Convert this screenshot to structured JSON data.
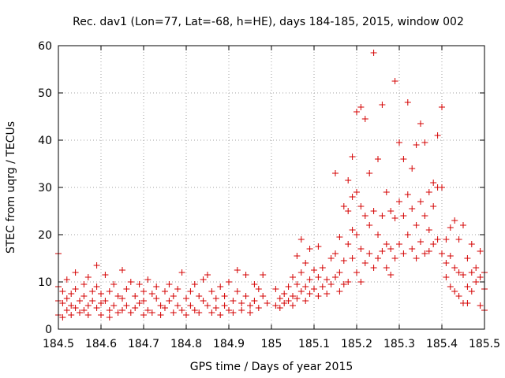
{
  "chart_data": {
    "type": "scatter",
    "title": "Rec. dav1 (Lon=77, Lat=-68, h=HE), days 184-185, 2015, window 002",
    "xlabel": "GPS time / Days of year 2015",
    "ylabel": "STEC from uqrg / TECUs",
    "xlim": [
      184.5,
      185.5
    ],
    "ylim": [
      0,
      60
    ],
    "xticks": [
      184.5,
      184.6,
      184.7,
      184.8,
      184.9,
      185,
      185.1,
      185.2,
      185.3,
      185.4,
      185.5
    ],
    "xtick_labels": [
      "184.5",
      "184.6",
      "184.7",
      "184.8",
      "184.9",
      "185",
      "185.1",
      "185.2",
      "185.3",
      "185.4",
      "185.5"
    ],
    "yticks": [
      0,
      10,
      20,
      30,
      40,
      50,
      60
    ],
    "ytick_labels": [
      "0",
      "10",
      "20",
      "30",
      "40",
      "50",
      "60"
    ],
    "grid": true,
    "marker": "plus",
    "color": "#d40000",
    "points": [
      [
        184.5,
        16.0
      ],
      [
        184.5,
        9.0
      ],
      [
        184.5,
        6.0
      ],
      [
        184.5,
        3.0
      ],
      [
        184.51,
        5.5
      ],
      [
        184.51,
        2.5
      ],
      [
        184.51,
        8.0
      ],
      [
        184.52,
        10.5
      ],
      [
        184.52,
        6.5
      ],
      [
        184.52,
        4.0
      ],
      [
        184.53,
        7.5
      ],
      [
        184.53,
        3.0
      ],
      [
        184.53,
        5.0
      ],
      [
        184.54,
        12.0
      ],
      [
        184.54,
        8.5
      ],
      [
        184.54,
        4.5
      ],
      [
        184.55,
        6.0
      ],
      [
        184.55,
        3.5
      ],
      [
        184.56,
        7.0
      ],
      [
        184.56,
        4.0
      ],
      [
        184.56,
        9.5
      ],
      [
        184.57,
        11.0
      ],
      [
        184.57,
        5.0
      ],
      [
        184.57,
        3.0
      ],
      [
        184.58,
        8.0
      ],
      [
        184.58,
        6.0
      ],
      [
        184.59,
        13.5
      ],
      [
        184.59,
        9.0
      ],
      [
        184.59,
        4.5
      ],
      [
        184.6,
        7.5
      ],
      [
        184.6,
        3.0
      ],
      [
        184.6,
        5.5
      ],
      [
        184.61,
        11.5
      ],
      [
        184.61,
        6.0
      ],
      [
        184.62,
        8.0
      ],
      [
        184.62,
        4.0
      ],
      [
        184.62,
        2.5
      ],
      [
        184.63,
        9.5
      ],
      [
        184.63,
        5.0
      ],
      [
        184.64,
        7.0
      ],
      [
        184.64,
        3.5
      ],
      [
        184.65,
        12.5
      ],
      [
        184.65,
        6.5
      ],
      [
        184.65,
        4.0
      ],
      [
        184.66,
        8.5
      ],
      [
        184.66,
        5.0
      ],
      [
        184.67,
        10.0
      ],
      [
        184.67,
        3.5
      ],
      [
        184.68,
        7.0
      ],
      [
        184.68,
        4.5
      ],
      [
        184.69,
        9.5
      ],
      [
        184.69,
        5.5
      ],
      [
        184.7,
        6.0
      ],
      [
        184.7,
        3.0
      ],
      [
        184.7,
        8.0
      ],
      [
        184.71,
        10.5
      ],
      [
        184.71,
        4.0
      ],
      [
        184.72,
        7.5
      ],
      [
        184.72,
        3.5
      ],
      [
        184.73,
        6.5
      ],
      [
        184.73,
        9.0
      ],
      [
        184.74,
        5.0
      ],
      [
        184.74,
        3.0
      ],
      [
        184.75,
        8.0
      ],
      [
        184.75,
        4.5
      ],
      [
        184.76,
        9.5
      ],
      [
        184.76,
        6.0
      ],
      [
        184.77,
        3.5
      ],
      [
        184.77,
        7.0
      ],
      [
        184.78,
        5.0
      ],
      [
        184.78,
        8.5
      ],
      [
        184.79,
        12.0
      ],
      [
        184.79,
        4.0
      ],
      [
        184.8,
        6.5
      ],
      [
        184.8,
        3.0
      ],
      [
        184.81,
        8.0
      ],
      [
        184.81,
        5.0
      ],
      [
        184.82,
        9.5
      ],
      [
        184.82,
        4.0
      ],
      [
        184.83,
        7.0
      ],
      [
        184.83,
        3.5
      ],
      [
        184.84,
        6.0
      ],
      [
        184.84,
        10.5
      ],
      [
        184.85,
        11.5
      ],
      [
        184.85,
        5.0
      ],
      [
        184.86,
        8.0
      ],
      [
        184.86,
        3.5
      ],
      [
        184.87,
        6.5
      ],
      [
        184.87,
        4.5
      ],
      [
        184.88,
        9.0
      ],
      [
        184.88,
        3.0
      ],
      [
        184.89,
        7.0
      ],
      [
        184.89,
        5.0
      ],
      [
        184.9,
        10.0
      ],
      [
        184.9,
        4.0
      ],
      [
        184.91,
        6.0
      ],
      [
        184.91,
        3.5
      ],
      [
        184.92,
        12.5
      ],
      [
        184.92,
        8.0
      ],
      [
        184.93,
        5.5
      ],
      [
        184.93,
        4.0
      ],
      [
        184.94,
        11.5
      ],
      [
        184.94,
        7.0
      ],
      [
        184.95,
        5.0
      ],
      [
        184.95,
        3.5
      ],
      [
        184.96,
        9.5
      ],
      [
        184.96,
        6.0
      ],
      [
        184.97,
        8.5
      ],
      [
        184.97,
        4.5
      ],
      [
        184.98,
        11.5
      ],
      [
        184.98,
        7.0
      ],
      [
        184.99,
        5.5
      ],
      [
        185.01,
        8.5
      ],
      [
        185.01,
        5.0
      ],
      [
        185.02,
        6.5
      ],
      [
        185.02,
        4.5
      ],
      [
        185.03,
        7.5
      ],
      [
        185.03,
        5.5
      ],
      [
        185.04,
        9.0
      ],
      [
        185.04,
        6.0
      ],
      [
        185.05,
        11.0
      ],
      [
        185.05,
        7.0
      ],
      [
        185.05,
        5.0
      ],
      [
        185.06,
        15.5
      ],
      [
        185.06,
        9.5
      ],
      [
        185.06,
        6.5
      ],
      [
        185.07,
        19.0
      ],
      [
        185.07,
        12.0
      ],
      [
        185.07,
        8.0
      ],
      [
        185.08,
        14.0
      ],
      [
        185.08,
        9.0
      ],
      [
        185.08,
        6.0
      ],
      [
        185.09,
        17.0
      ],
      [
        185.09,
        10.5
      ],
      [
        185.09,
        7.5
      ],
      [
        185.1,
        12.5
      ],
      [
        185.1,
        8.5
      ],
      [
        185.11,
        17.5
      ],
      [
        185.11,
        11.0
      ],
      [
        185.11,
        7.0
      ],
      [
        185.12,
        13.0
      ],
      [
        185.12,
        9.0
      ],
      [
        185.13,
        10.5
      ],
      [
        185.13,
        7.5
      ],
      [
        185.14,
        15.0
      ],
      [
        185.14,
        9.5
      ],
      [
        185.15,
        33.0
      ],
      [
        185.15,
        16.0
      ],
      [
        185.15,
        11.0
      ],
      [
        185.16,
        19.5
      ],
      [
        185.16,
        12.0
      ],
      [
        185.16,
        8.0
      ],
      [
        185.17,
        26.0
      ],
      [
        185.17,
        14.5
      ],
      [
        185.17,
        9.5
      ],
      [
        185.18,
        31.5
      ],
      [
        185.18,
        25.0
      ],
      [
        185.18,
        18.0
      ],
      [
        185.18,
        10.0
      ],
      [
        185.19,
        36.5
      ],
      [
        185.19,
        28.0
      ],
      [
        185.19,
        21.0
      ],
      [
        185.19,
        15.0
      ],
      [
        185.2,
        46.0
      ],
      [
        185.2,
        29.0
      ],
      [
        185.2,
        20.0
      ],
      [
        185.2,
        12.0
      ],
      [
        185.21,
        47.0
      ],
      [
        185.21,
        26.0
      ],
      [
        185.21,
        17.0
      ],
      [
        185.21,
        10.0
      ],
      [
        185.22,
        44.5
      ],
      [
        185.22,
        24.0
      ],
      [
        185.22,
        14.0
      ],
      [
        185.23,
        33.0
      ],
      [
        185.23,
        22.0
      ],
      [
        185.23,
        16.0
      ],
      [
        185.24,
        58.5
      ],
      [
        185.24,
        25.0
      ],
      [
        185.24,
        13.0
      ],
      [
        185.25,
        36.0
      ],
      [
        185.25,
        20.0
      ],
      [
        185.25,
        15.0
      ],
      [
        185.26,
        47.5
      ],
      [
        185.26,
        24.0
      ],
      [
        185.26,
        16.5
      ],
      [
        185.27,
        29.0
      ],
      [
        185.27,
        18.0
      ],
      [
        185.27,
        13.0
      ],
      [
        185.28,
        25.0
      ],
      [
        185.28,
        17.0
      ],
      [
        185.28,
        11.5
      ],
      [
        185.29,
        52.5
      ],
      [
        185.29,
        23.5
      ],
      [
        185.29,
        15.0
      ],
      [
        185.3,
        39.5
      ],
      [
        185.3,
        27.0
      ],
      [
        185.3,
        18.0
      ],
      [
        185.31,
        36.0
      ],
      [
        185.31,
        24.0
      ],
      [
        185.31,
        16.0
      ],
      [
        185.32,
        48.0
      ],
      [
        185.32,
        28.5
      ],
      [
        185.32,
        20.0
      ],
      [
        185.33,
        34.0
      ],
      [
        185.33,
        25.5
      ],
      [
        185.33,
        17.0
      ],
      [
        185.34,
        39.0
      ],
      [
        185.34,
        22.0
      ],
      [
        185.34,
        15.0
      ],
      [
        185.35,
        43.5
      ],
      [
        185.35,
        27.0
      ],
      [
        185.35,
        18.5
      ],
      [
        185.36,
        39.5
      ],
      [
        185.36,
        24.0
      ],
      [
        185.36,
        16.0
      ],
      [
        185.37,
        29.0
      ],
      [
        185.37,
        21.0
      ],
      [
        185.37,
        16.5
      ],
      [
        185.38,
        31.0
      ],
      [
        185.38,
        26.0
      ],
      [
        185.38,
        18.0
      ],
      [
        185.39,
        41.0
      ],
      [
        185.39,
        30.0
      ],
      [
        185.39,
        19.0
      ],
      [
        185.4,
        47.0
      ],
      [
        185.4,
        30.0
      ],
      [
        185.4,
        16.0
      ],
      [
        185.41,
        19.0
      ],
      [
        185.41,
        14.0
      ],
      [
        185.41,
        11.0
      ],
      [
        185.42,
        21.5
      ],
      [
        185.42,
        15.5
      ],
      [
        185.42,
        9.0
      ],
      [
        185.43,
        23.0
      ],
      [
        185.43,
        13.0
      ],
      [
        185.43,
        8.0
      ],
      [
        185.44,
        19.0
      ],
      [
        185.44,
        12.0
      ],
      [
        185.44,
        7.0
      ],
      [
        185.45,
        22.0
      ],
      [
        185.45,
        11.5
      ],
      [
        185.45,
        5.5
      ],
      [
        185.46,
        15.0
      ],
      [
        185.46,
        9.0
      ],
      [
        185.46,
        5.5
      ],
      [
        185.47,
        18.0
      ],
      [
        185.47,
        12.0
      ],
      [
        185.47,
        8.0
      ],
      [
        185.48,
        13.0
      ],
      [
        185.48,
        10.0
      ],
      [
        185.49,
        16.5
      ],
      [
        185.49,
        11.0
      ],
      [
        185.49,
        5.0
      ],
      [
        185.5,
        12.0
      ],
      [
        185.5,
        8.5
      ],
      [
        185.5,
        4.0
      ]
    ]
  }
}
